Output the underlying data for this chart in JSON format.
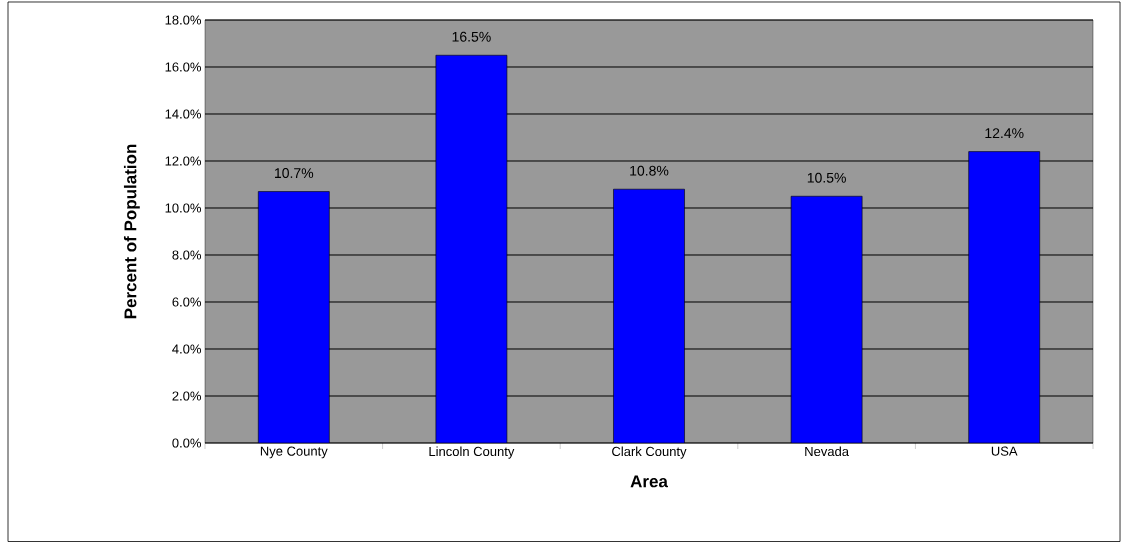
{
  "chart_data": {
    "type": "bar",
    "xlabel": "Area",
    "ylabel": "Percent of Population",
    "categories": [
      "Nye County",
      "Lincoln County",
      "Clark County",
      "Nevada",
      "USA"
    ],
    "values": [
      10.7,
      16.5,
      10.8,
      10.5,
      12.4
    ],
    "value_labels": [
      "10.7%",
      "16.5%",
      "10.8%",
      "10.5%",
      "12.4%"
    ],
    "color": "#0000ff",
    "ylim": [
      0,
      18
    ],
    "yticks": [
      {
        "value": 0,
        "label": "0.0%"
      },
      {
        "value": 2,
        "label": "2.0%"
      },
      {
        "value": 4,
        "label": "4.0%"
      },
      {
        "value": 6,
        "label": "6.0%"
      },
      {
        "value": 8,
        "label": "8.0%"
      },
      {
        "value": 10,
        "label": "10.0%"
      },
      {
        "value": 12,
        "label": "12.0%"
      },
      {
        "value": 14,
        "label": "14.0%"
      },
      {
        "value": 16,
        "label": "16.0%"
      },
      {
        "value": 18,
        "label": "18.0%"
      }
    ],
    "grid": "y"
  }
}
